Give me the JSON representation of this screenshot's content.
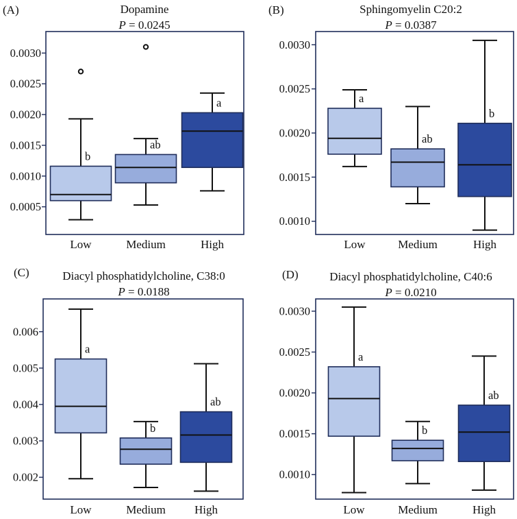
{
  "colors": {
    "low": "#b8c9ea",
    "medium": "#97acdc",
    "high": "#2c4a9e",
    "frame": "#1f2d5a",
    "line": "#111111"
  },
  "chart_data": [
    {
      "type": "box",
      "panel": "(A)",
      "title": "Dopamine",
      "pvalue": "= 0.0245",
      "categories": [
        "Low",
        "Medium",
        "High"
      ],
      "ylim": [
        5e-05,
        0.00335
      ],
      "yticks": [
        0.0005,
        0.001,
        0.0015,
        0.002,
        0.0025,
        0.003
      ],
      "ytick_labels": [
        "0.0005",
        "0.0010",
        "0.0015",
        "0.0020",
        "0.0025",
        "0.0030"
      ],
      "boxes": [
        {
          "whisker_low": 0.00029,
          "q1": 0.0006,
          "median": 0.0007,
          "q3": 0.00116,
          "whisker_high": 0.00193,
          "outliers": [
            0.0027
          ],
          "letter": "b"
        },
        {
          "whisker_low": 0.00053,
          "q1": 0.00089,
          "median": 0.00114,
          "q3": 0.00135,
          "whisker_high": 0.00161,
          "outliers": [
            0.0031
          ],
          "letter": "ab"
        },
        {
          "whisker_low": 0.00076,
          "q1": 0.00114,
          "median": 0.00173,
          "q3": 0.00203,
          "whisker_high": 0.00235,
          "outliers": [],
          "letter": "a"
        }
      ]
    },
    {
      "type": "box",
      "panel": "(B)",
      "title": "Sphingomyelin C20:2",
      "pvalue": "= 0.0387",
      "categories": [
        "Low",
        "Medium",
        "High"
      ],
      "ylim": [
        0.00085,
        0.00315
      ],
      "yticks": [
        0.001,
        0.0015,
        0.002,
        0.0025,
        0.003
      ],
      "ytick_labels": [
        "0.0010",
        "0.0015",
        "0.0020",
        "0.0025",
        "0.0030"
      ],
      "boxes": [
        {
          "whisker_low": 0.00162,
          "q1": 0.00176,
          "median": 0.00194,
          "q3": 0.00228,
          "whisker_high": 0.00249,
          "outliers": [],
          "letter": "a"
        },
        {
          "whisker_low": 0.0012,
          "q1": 0.00139,
          "median": 0.00167,
          "q3": 0.00182,
          "whisker_high": 0.0023,
          "outliers": [],
          "letter": "ab"
        },
        {
          "whisker_low": 0.0009,
          "q1": 0.00128,
          "median": 0.00164,
          "q3": 0.00211,
          "whisker_high": 0.00305,
          "outliers": [],
          "letter": "b"
        }
      ]
    },
    {
      "type": "box",
      "panel": "(C)",
      "title": "Diacyl phosphatidylcholine, C38:0",
      "pvalue": "= 0.0188",
      "categories": [
        "Low",
        "Medium",
        "High"
      ],
      "ylim": [
        0.0014,
        0.0069
      ],
      "yticks": [
        0.002,
        0.003,
        0.004,
        0.005,
        0.006
      ],
      "ytick_labels": [
        "0.002",
        "0.003",
        "0.004",
        "0.005",
        "0.006"
      ],
      "boxes": [
        {
          "whisker_low": 0.00196,
          "q1": 0.00322,
          "median": 0.00395,
          "q3": 0.00525,
          "whisker_high": 0.00662,
          "outliers": [],
          "letter": "a"
        },
        {
          "whisker_low": 0.00172,
          "q1": 0.00236,
          "median": 0.00277,
          "q3": 0.00308,
          "whisker_high": 0.00353,
          "outliers": [],
          "letter": "b"
        },
        {
          "whisker_low": 0.00162,
          "q1": 0.00241,
          "median": 0.00316,
          "q3": 0.0038,
          "whisker_high": 0.00512,
          "outliers": [],
          "letter": "ab"
        }
      ]
    },
    {
      "type": "box",
      "panel": "(D)",
      "title": "Diacyl phosphatidylcholine, C40:6",
      "pvalue": "= 0.0210",
      "categories": [
        "Low",
        "Medium",
        "High"
      ],
      "ylim": [
        0.0007,
        0.00315
      ],
      "yticks": [
        0.001,
        0.0015,
        0.002,
        0.0025,
        0.003
      ],
      "ytick_labels": [
        "0.0010",
        "0.0015",
        "0.0020",
        "0.0025",
        "0.0030"
      ],
      "boxes": [
        {
          "whisker_low": 0.00078,
          "q1": 0.00147,
          "median": 0.00193,
          "q3": 0.00232,
          "whisker_high": 0.00305,
          "outliers": [],
          "letter": "a"
        },
        {
          "whisker_low": 0.00089,
          "q1": 0.00117,
          "median": 0.00132,
          "q3": 0.00142,
          "whisker_high": 0.00165,
          "outliers": [],
          "letter": "b"
        },
        {
          "whisker_low": 0.00081,
          "q1": 0.00116,
          "median": 0.00152,
          "q3": 0.00185,
          "whisker_high": 0.00245,
          "outliers": [],
          "letter": "ab"
        }
      ]
    }
  ]
}
